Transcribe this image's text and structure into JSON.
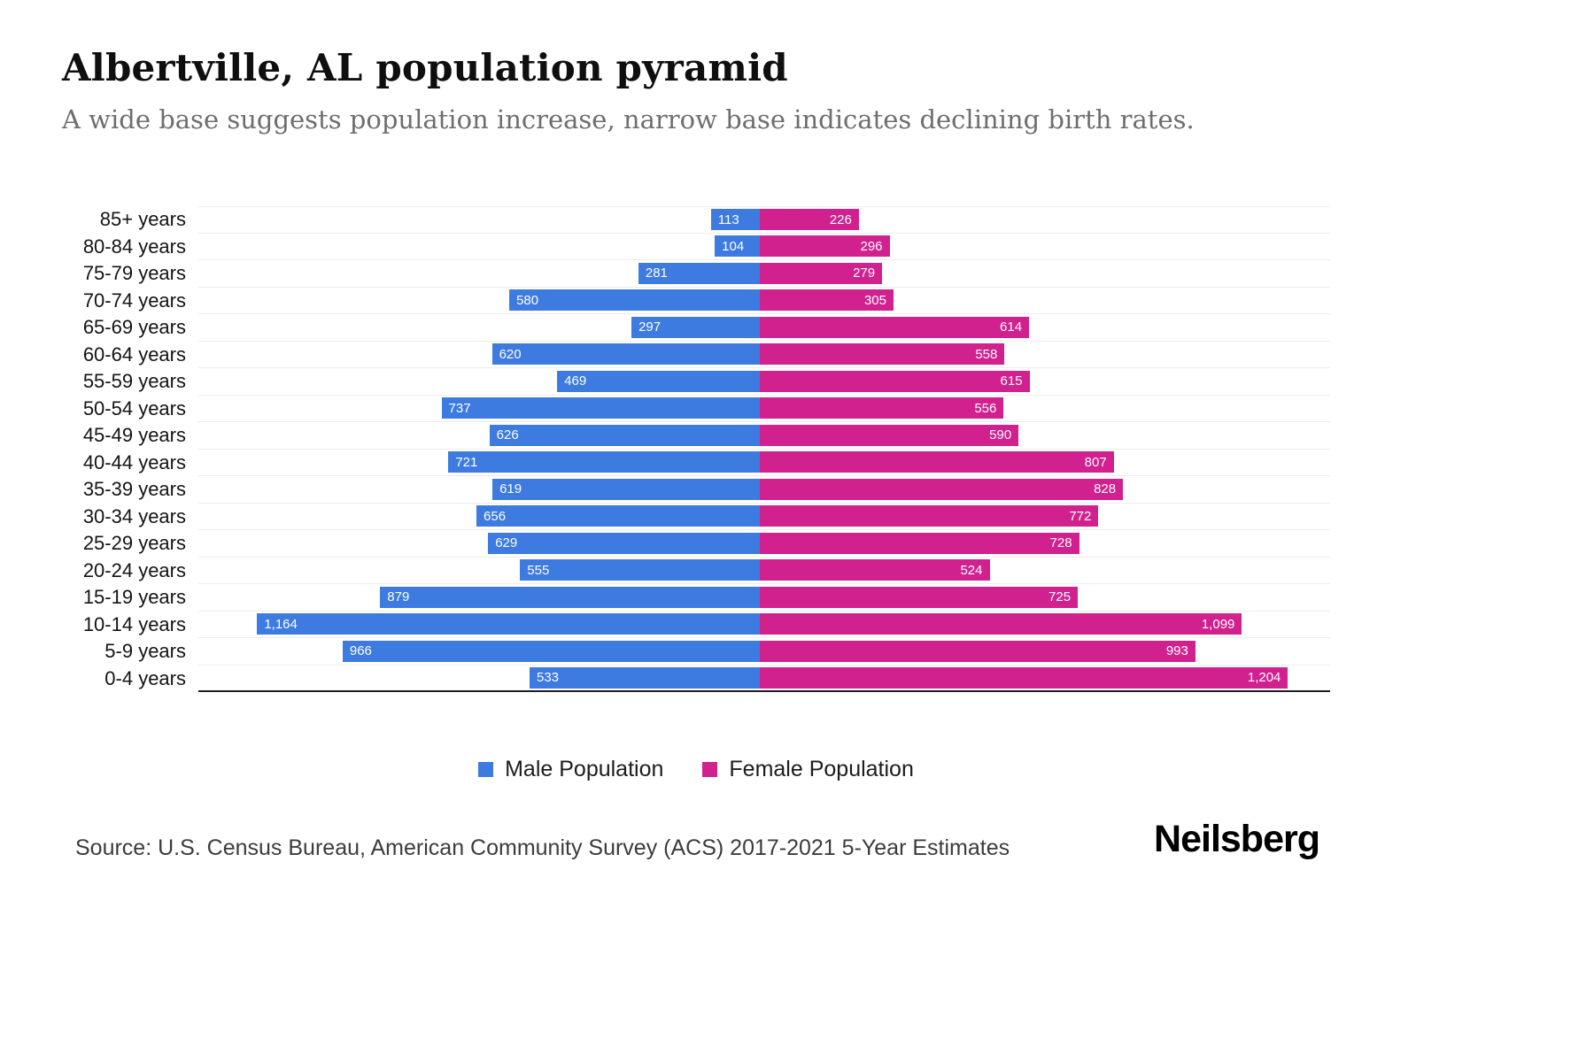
{
  "header": {
    "title": "Albertville, AL population pyramid",
    "subtitle": "A wide base suggests population increase, narrow base indicates declining birth rates."
  },
  "chart_data": {
    "type": "bar",
    "orientation": "horizontal-diverging",
    "title": "Albertville, AL population pyramid",
    "categories": [
      "85+ years",
      "80-84 years",
      "75-79 years",
      "70-74 years",
      "65-69 years",
      "60-64 years",
      "55-59 years",
      "50-54 years",
      "45-49 years",
      "40-44 years",
      "35-39 years",
      "30-34 years",
      "25-29 years",
      "20-24 years",
      "15-19 years",
      "10-14 years",
      "5-9 years",
      "0-4 years"
    ],
    "series": [
      {
        "name": "Male Population",
        "color": "#3e7be0",
        "values": [
          113,
          104,
          281,
          580,
          297,
          620,
          469,
          737,
          626,
          721,
          619,
          656,
          629,
          555,
          879,
          1164,
          966,
          533
        ]
      },
      {
        "name": "Female Population",
        "color": "#d0218f",
        "values": [
          226,
          296,
          279,
          305,
          614,
          558,
          615,
          556,
          590,
          807,
          828,
          772,
          728,
          524,
          725,
          1099,
          993,
          1204
        ]
      }
    ],
    "axis_max_per_side": 1300,
    "grid": "horizontal-light",
    "legend_position": "bottom"
  },
  "legend": {
    "male_label": "Male Population",
    "female_label": "Female Population"
  },
  "footer": {
    "source": "Source: U.S. Census Bureau, American Community Survey (ACS) 2017-2021 5-Year Estimates",
    "brand": "Neilsberg"
  }
}
